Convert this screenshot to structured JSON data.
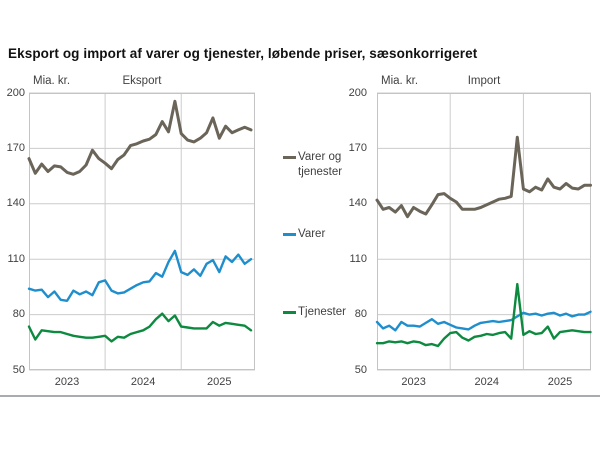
{
  "title": "Eksport og import af varer og tjenester, løbende priser, sæsonkorrigeret",
  "legend": {
    "items": [
      {
        "label_lines": [
          "Varer og",
          "tjenester"
        ],
        "color": "#6a6459"
      },
      {
        "label_lines": [
          "Varer",
          ""
        ],
        "color": "#1f8ecd"
      },
      {
        "label_lines": [
          "Tjenester",
          ""
        ],
        "color": "#0d8a3f"
      }
    ]
  },
  "colors": {
    "total": "#6a6459",
    "goods": "#1f8ecd",
    "services": "#0d8a3f",
    "grid": "#cccccc",
    "plot_border": "#c4c4c4",
    "axis_text": "#414141",
    "divider": "#a8acb1"
  },
  "chart_data": [
    {
      "type": "line",
      "title": "Eksport",
      "unit": "Mia. kr.",
      "ylabel": "Mia. kr.",
      "ylim": [
        50,
        200
      ],
      "y_ticks": [
        200,
        170,
        140,
        110,
        80,
        50
      ],
      "x_tick_labels": [
        "2023",
        "2024",
        "2025"
      ],
      "grid": true,
      "frequency": "monthly",
      "series": [
        {
          "name": "Varer og tjenester",
          "color": "#6a6459",
          "values": [
            164.5,
            156.5,
            161.5,
            157.5,
            160.5,
            160,
            157,
            156,
            157.5,
            161,
            169,
            164.5,
            162,
            159,
            164,
            166.5,
            171.5,
            172.5,
            174,
            175,
            177.5,
            184.5,
            179,
            195.5,
            178,
            174.5,
            173.5,
            175.5,
            178.5,
            186.5,
            175.5,
            182,
            178.5,
            180,
            181.5,
            180
          ]
        },
        {
          "name": "Varer",
          "color": "#1f8ecd",
          "values": [
            94,
            93,
            93.5,
            89.5,
            92.5,
            88,
            87.5,
            93,
            91,
            92.5,
            90.5,
            97.5,
            98.5,
            93,
            91.5,
            92,
            94,
            96,
            97.5,
            98,
            102.5,
            100.5,
            108.5,
            114.5,
            103,
            101.5,
            104.5,
            101,
            107.5,
            109.5,
            103,
            111.5,
            108.5,
            112.5,
            107.5,
            110
          ]
        },
        {
          "name": "Tjenester",
          "color": "#0d8a3f",
          "values": [
            73.5,
            66.5,
            71.5,
            71,
            70.5,
            70.5,
            69.5,
            68.5,
            68,
            67.5,
            67.5,
            68,
            68.5,
            65.5,
            68,
            67.5,
            69.5,
            70.5,
            71.5,
            73.5,
            77.5,
            80.5,
            76.5,
            79.5,
            73.5,
            73,
            72.5,
            72.5,
            72.5,
            76,
            74,
            75.5,
            75,
            74.5,
            74,
            71.5
          ]
        }
      ]
    },
    {
      "type": "line",
      "title": "Import",
      "unit": "Mia. kr.",
      "ylabel": "Mia. kr.",
      "ylim": [
        50,
        200
      ],
      "y_ticks": [
        200,
        170,
        140,
        110,
        80,
        50
      ],
      "x_tick_labels": [
        "2023",
        "2024",
        "2025"
      ],
      "grid": true,
      "frequency": "monthly",
      "series": [
        {
          "name": "Varer og tjenester",
          "color": "#6a6459",
          "values": [
            142,
            137,
            138,
            135.5,
            139,
            133,
            138,
            136,
            134.5,
            139.5,
            145,
            145.5,
            143,
            141,
            137,
            137,
            137,
            138,
            139.5,
            141,
            142.5,
            143,
            144,
            176,
            148,
            146.5,
            149,
            147.5,
            153.5,
            149,
            148,
            151,
            148.5,
            148,
            150,
            150
          ]
        },
        {
          "name": "Varer",
          "color": "#1f8ecd",
          "values": [
            76,
            72.5,
            74,
            71.5,
            76,
            74,
            74,
            73.5,
            75.5,
            77.5,
            75,
            76,
            74.5,
            73,
            72.5,
            72,
            74,
            75.5,
            76,
            76.5,
            76,
            76.5,
            77,
            79,
            81,
            80,
            80.5,
            79.5,
            80.5,
            81,
            79.5,
            80.5,
            79,
            80,
            80,
            81.5
          ]
        },
        {
          "name": "Tjenester",
          "color": "#0d8a3f",
          "values": [
            64.5,
            64.5,
            65.5,
            65,
            65.5,
            64.5,
            65.5,
            65,
            63.5,
            64,
            63,
            67,
            70,
            70.5,
            67.5,
            66,
            68,
            68.5,
            69.5,
            69,
            70,
            70.5,
            67,
            96.5,
            69,
            71,
            69.5,
            70,
            73.5,
            67,
            70.5,
            71,
            71.5,
            71,
            70.5,
            70.5
          ]
        }
      ]
    }
  ]
}
